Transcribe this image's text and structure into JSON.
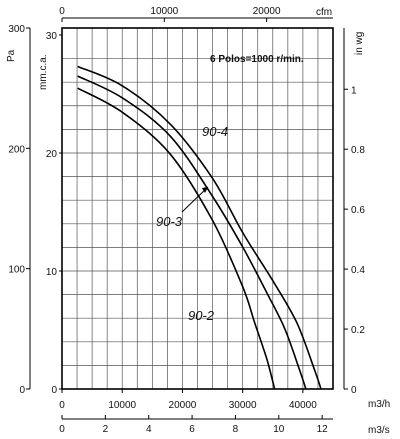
{
  "chart_data": {
    "type": "line",
    "title": "",
    "note": "6 Polos=1000 r/min.",
    "axes": {
      "bottom_flow_m3h": {
        "label": "m3/h",
        "min": 0,
        "max": 45000,
        "ticks": [
          0,
          10000,
          20000,
          30000,
          40000
        ],
        "tick_labels": [
          "0",
          "10000",
          "20000",
          "30000",
          "40000"
        ]
      },
      "bottom_flow_m3s": {
        "label": "m3/s",
        "ticks": [
          0,
          2,
          4,
          6,
          8,
          10,
          12
        ],
        "tick_labels": [
          "0",
          "2",
          "4",
          "6",
          "8",
          "10",
          "12"
        ]
      },
      "top_flow_cfm": {
        "label": "cfm",
        "ticks": [
          0,
          10000,
          20000
        ],
        "tick_labels": [
          "0",
          "10000",
          "20000"
        ]
      },
      "left_pressure_pa": {
        "label": "Pa",
        "min": 0,
        "max": 300,
        "ticks": [
          0,
          100,
          200,
          300
        ],
        "tick_labels": [
          "0",
          "100",
          "200",
          "300"
        ]
      },
      "left_pressure_mmca": {
        "label": "mm.c.a.",
        "ticks": [
          0,
          10,
          20,
          30
        ],
        "tick_labels": [
          "0",
          "10",
          "20",
          "30"
        ]
      },
      "right_pressure_inwg": {
        "label": "in wg",
        "ticks": [
          0,
          0.2,
          0.4,
          0.6,
          0.8,
          1
        ],
        "tick_labels": [
          "0",
          "0.2",
          "0.4",
          "0.6",
          "0.8",
          "1"
        ]
      }
    },
    "grid": true,
    "series": [
      {
        "name": "90-4",
        "x": [
          2600,
          10000,
          18000,
          25000,
          30000,
          35000,
          39000,
          42000,
          43000
        ],
        "y": [
          268,
          252,
          220,
          175,
          130,
          90,
          55,
          15,
          0
        ]
      },
      {
        "name": "90-3",
        "x": [
          2600,
          10000,
          18000,
          25000,
          30000,
          34000,
          37000,
          39500,
          40500
        ],
        "y": [
          260,
          242,
          210,
          160,
          118,
          80,
          50,
          15,
          0
        ]
      },
      {
        "name": "90-2",
        "x": [
          2600,
          10000,
          18000,
          25000,
          30000,
          32000,
          34000,
          35300
        ],
        "y": [
          250,
          230,
          195,
          140,
          85,
          55,
          25,
          0
        ]
      }
    ],
    "labels": [
      "90-4",
      "90-3",
      "90-2"
    ]
  }
}
